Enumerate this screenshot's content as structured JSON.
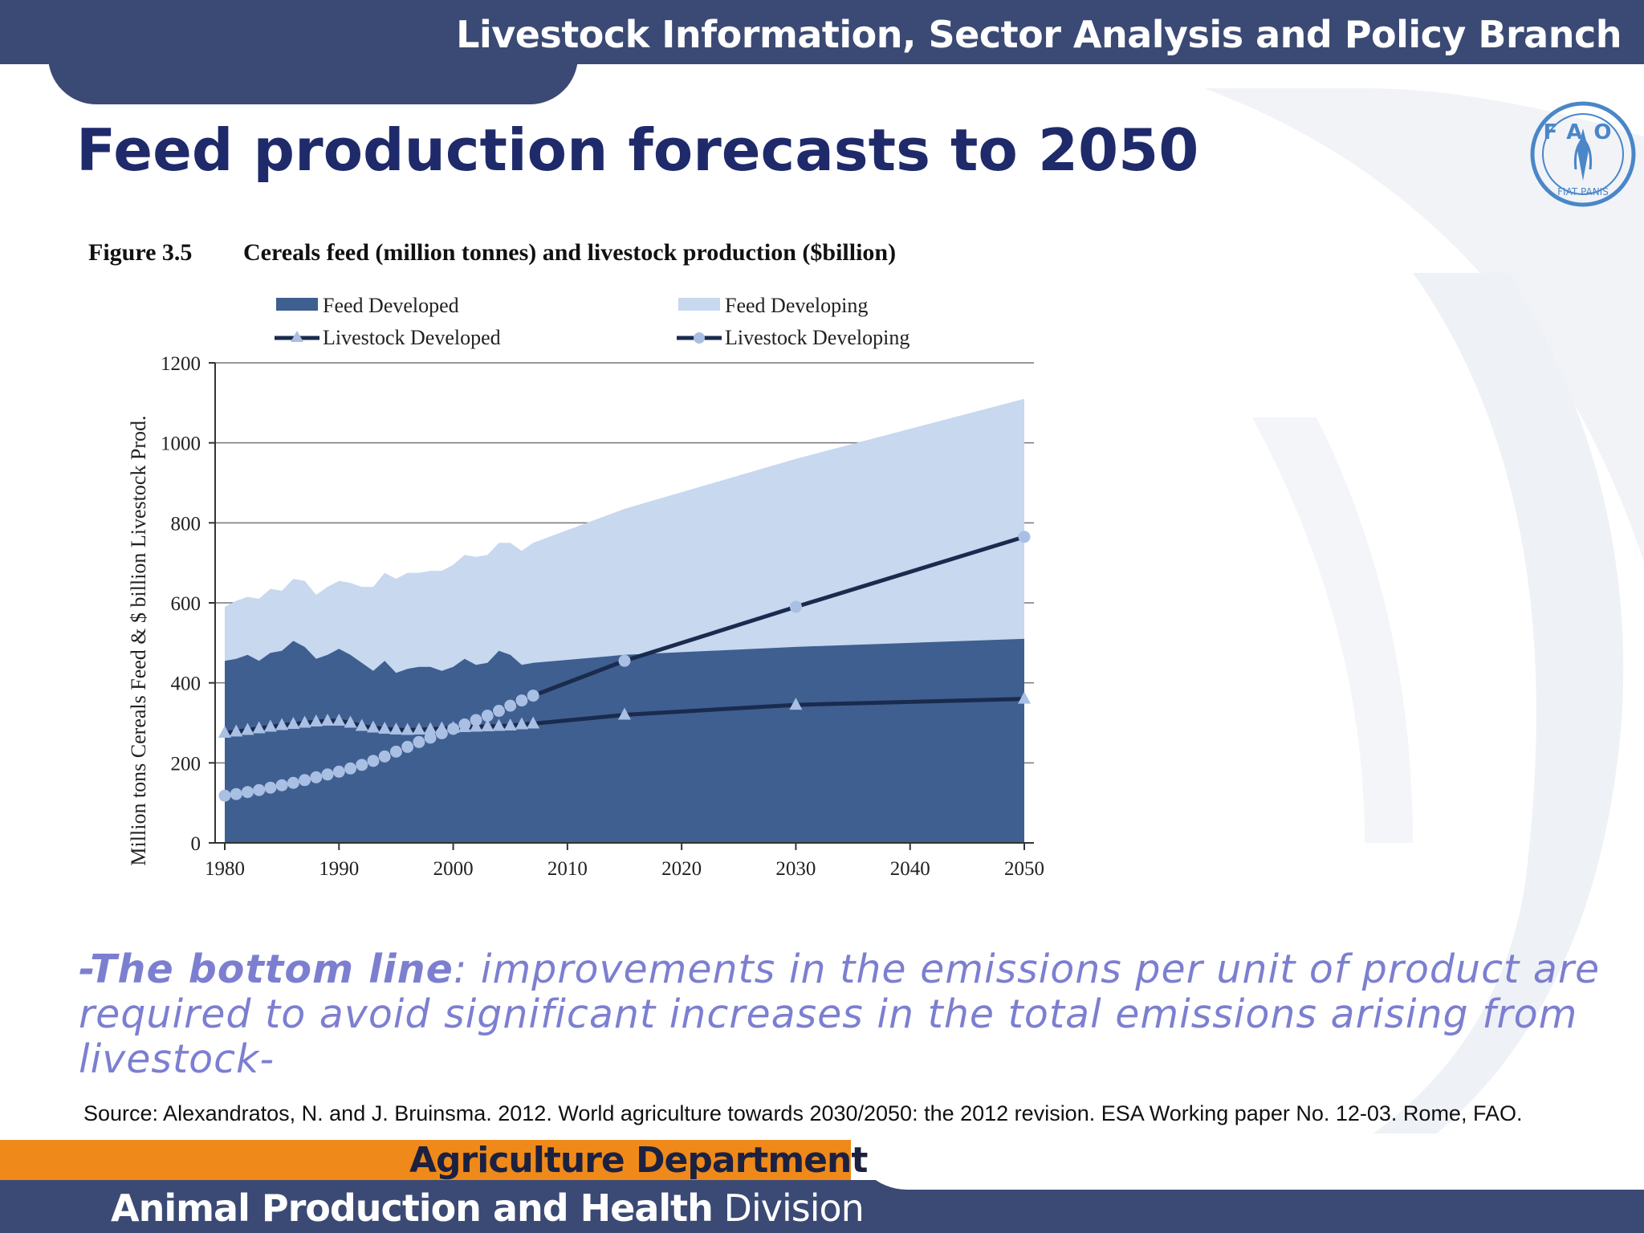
{
  "header": {
    "branch": "Livestock Information, Sector Analysis and Policy Branch"
  },
  "slide": {
    "title": "Feed production forecasts to 2050"
  },
  "logo": {
    "text_top": "FAO",
    "text_bottom": "FIAT PANIS",
    "icon": "fao-emblem-icon"
  },
  "chart_data": {
    "type": "area",
    "figure_number": "Figure 3.5",
    "title": "Cereals feed (million tonnes) and livestock production ($billion)",
    "ylabel": "Million tons Cereals Feed & $ billion Livestock Prod.",
    "xlabel": "",
    "xlim": [
      1980,
      2050
    ],
    "ylim": [
      0,
      1200
    ],
    "x_ticks": [
      "1980",
      "1990",
      "2000",
      "2010",
      "2020",
      "2030",
      "2040",
      "2050"
    ],
    "y_ticks": [
      "0",
      "200",
      "400",
      "600",
      "800",
      "1000",
      "1200"
    ],
    "grid": "horizontal",
    "legend_position": "top",
    "legend": {
      "feed_developed": "Feed Developed",
      "feed_developing": "Feed Developing",
      "livestock_developed": "Livestock Developed",
      "livestock_developing": "Livestock Developing"
    },
    "colors": {
      "feed_developed": "#3e5f90",
      "feed_developing": "#c7d8ef",
      "line": "#1a2b4e",
      "marker": "#a9bfe3"
    },
    "series": [
      {
        "name": "Feed Developed",
        "kind": "area",
        "x": [
          1980,
          1981,
          1982,
          1983,
          1984,
          1985,
          1986,
          1987,
          1988,
          1989,
          1990,
          1991,
          1992,
          1993,
          1994,
          1995,
          1996,
          1997,
          1998,
          1999,
          2000,
          2001,
          2002,
          2003,
          2004,
          2005,
          2006,
          2007,
          2015,
          2030,
          2050
        ],
        "values": [
          455,
          460,
          470,
          455,
          475,
          480,
          505,
          490,
          460,
          470,
          485,
          470,
          450,
          430,
          455,
          425,
          435,
          440,
          440,
          430,
          440,
          460,
          445,
          450,
          480,
          470,
          445,
          450,
          470,
          490,
          510
        ]
      },
      {
        "name": "Feed Developing (stacked total)",
        "kind": "area",
        "x": [
          1980,
          1981,
          1982,
          1983,
          1984,
          1985,
          1986,
          1987,
          1988,
          1989,
          1990,
          1991,
          1992,
          1993,
          1994,
          1995,
          1996,
          1997,
          1998,
          1999,
          2000,
          2001,
          2002,
          2003,
          2004,
          2005,
          2006,
          2007,
          2015,
          2030,
          2050
        ],
        "values": [
          590,
          605,
          615,
          610,
          635,
          630,
          660,
          655,
          620,
          640,
          655,
          650,
          640,
          640,
          675,
          660,
          675,
          675,
          680,
          680,
          695,
          720,
          715,
          720,
          750,
          750,
          730,
          750,
          835,
          960,
          1110
        ]
      },
      {
        "name": "Livestock Developed",
        "kind": "line",
        "marker": "triangle",
        "x": [
          1980,
          1981,
          1982,
          1983,
          1984,
          1985,
          1986,
          1987,
          1988,
          1989,
          1990,
          1991,
          1992,
          1993,
          1994,
          1995,
          1996,
          1997,
          1998,
          1999,
          2000,
          2001,
          2002,
          2003,
          2004,
          2005,
          2006,
          2007,
          2015,
          2030,
          2050
        ],
        "values": [
          275,
          278,
          282,
          286,
          290,
          294,
          297,
          300,
          303,
          305,
          305,
          300,
          292,
          288,
          285,
          283,
          282,
          283,
          284,
          286,
          287,
          289,
          290,
          291,
          292,
          293,
          296,
          298,
          320,
          345,
          360
        ]
      },
      {
        "name": "Livestock Developing",
        "kind": "line",
        "marker": "circle",
        "x": [
          1980,
          1981,
          1982,
          1983,
          1984,
          1985,
          1986,
          1987,
          1988,
          1989,
          1990,
          1991,
          1992,
          1993,
          1994,
          1995,
          1996,
          1997,
          1998,
          1999,
          2000,
          2001,
          2002,
          2003,
          2004,
          2005,
          2006,
          2007,
          2015,
          2030,
          2050
        ],
        "values": [
          118,
          122,
          127,
          132,
          138,
          144,
          150,
          157,
          164,
          171,
          178,
          186,
          195,
          205,
          216,
          228,
          240,
          252,
          263,
          274,
          285,
          296,
          307,
          318,
          330,
          343,
          356,
          368,
          455,
          590,
          765
        ]
      }
    ]
  },
  "bottom_line": {
    "lead": "-The bottom line",
    "text": ": improvements in the emissions per unit of product are required to avoid significant increases in the total emissions arising from livestock-"
  },
  "source": "Source: Alexandratos, N. and J. Bruinsma. 2012. World agriculture towards 2030/2050: the 2012 revision. ESA Working paper No. 12-03. Rome, FAO.",
  "footer": {
    "department": "Agriculture Department",
    "division_bold": "Animal Production and Health",
    "division_rest": " Division"
  }
}
